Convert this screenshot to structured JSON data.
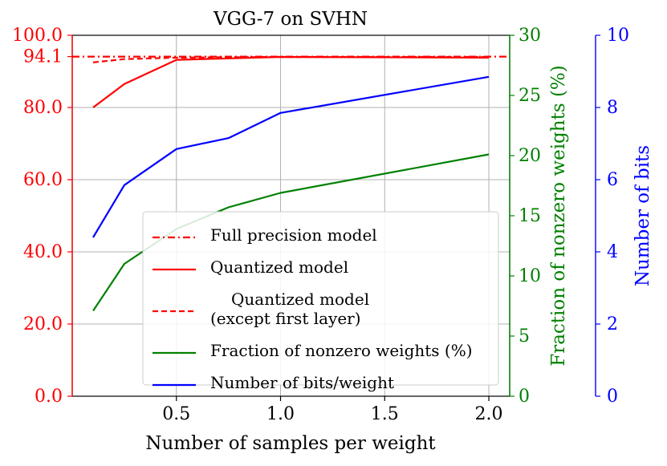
{
  "chart_data": {
    "type": "line",
    "title": "VGG-7 on SVHN",
    "xlabel": "Number of samples per weight",
    "xlim": [
      0.0,
      2.1
    ],
    "xticks": [
      0.5,
      1.0,
      1.5,
      2.0
    ],
    "xtick_labels": [
      "0.5",
      "1.0",
      "1.5",
      "2.0"
    ],
    "grid": true,
    "axes": {
      "left": {
        "ylim": [
          0,
          100
        ],
        "ticks": [
          0,
          20,
          40,
          60,
          80,
          94.1,
          100
        ],
        "tick_labels": [
          "0.0",
          "20.0",
          "40.0",
          "60.0",
          "80.0",
          "94.1",
          "100.0"
        ],
        "color": "#ff0000",
        "label": ""
      },
      "right": {
        "ylim": [
          0,
          30
        ],
        "ticks": [
          0,
          5,
          10,
          15,
          20,
          25,
          30
        ],
        "tick_labels": [
          "0",
          "5",
          "10",
          "15",
          "20",
          "25",
          "30"
        ],
        "color": "#008000",
        "label": "Fraction of nonzero weights (%)"
      },
      "far_right": {
        "ylim": [
          0,
          10
        ],
        "ticks": [
          0,
          2,
          4,
          6,
          8,
          10
        ],
        "tick_labels": [
          "0",
          "2",
          "4",
          "6",
          "8",
          "10"
        ],
        "color": "#0000ff",
        "label": "Number of bits"
      }
    },
    "series": [
      {
        "name": "Full precision model",
        "axis": "left",
        "color": "#ff0000",
        "style": "dashdot",
        "x": [
          0.0,
          2.1
        ],
        "y": [
          94.1,
          94.1
        ]
      },
      {
        "name": "Quantized model",
        "axis": "left",
        "color": "#ff0000",
        "style": "solid",
        "x": [
          0.1,
          0.25,
          0.5,
          0.75,
          1.0,
          2.0
        ],
        "y": [
          80.0,
          86.5,
          93.2,
          93.6,
          94.0,
          93.8
        ]
      },
      {
        "name": "Quantized model\n(except first layer)",
        "axis": "left",
        "color": "#ff0000",
        "style": "dashed",
        "x": [
          0.1,
          0.25,
          0.5,
          0.75,
          1.0,
          2.0
        ],
        "y": [
          92.5,
          93.4,
          93.8,
          93.9,
          94.0,
          94.0
        ]
      },
      {
        "name": "Fraction of nonzero weights (%)",
        "axis": "right",
        "color": "#008000",
        "style": "solid",
        "x": [
          0.1,
          0.25,
          0.5,
          0.75,
          1.0,
          2.0
        ],
        "y": [
          7.1,
          11.0,
          13.9,
          15.7,
          16.9,
          20.1
        ]
      },
      {
        "name": "Number of bits/weight",
        "axis": "far_right",
        "color": "#0000ff",
        "style": "solid",
        "x": [
          0.1,
          0.25,
          0.5,
          0.75,
          1.0,
          2.0
        ],
        "y": [
          4.4,
          5.85,
          6.85,
          7.15,
          7.85,
          8.85
        ]
      }
    ],
    "legend": {
      "placement": "lower-right",
      "entries": [
        {
          "lines": [
            "Full precision model"
          ],
          "color": "#ff0000",
          "style": "dashdot"
        },
        {
          "lines": [
            "Quantized model"
          ],
          "color": "#ff0000",
          "style": "solid"
        },
        {
          "lines": [
            "Quantized model",
            "(except first layer)"
          ],
          "color": "#ff0000",
          "style": "dashed"
        },
        {
          "lines": [
            "Fraction of nonzero weights (%)"
          ],
          "color": "#008000",
          "style": "solid"
        },
        {
          "lines": [
            "Number of bits/weight"
          ],
          "color": "#0000ff",
          "style": "solid"
        }
      ]
    }
  }
}
